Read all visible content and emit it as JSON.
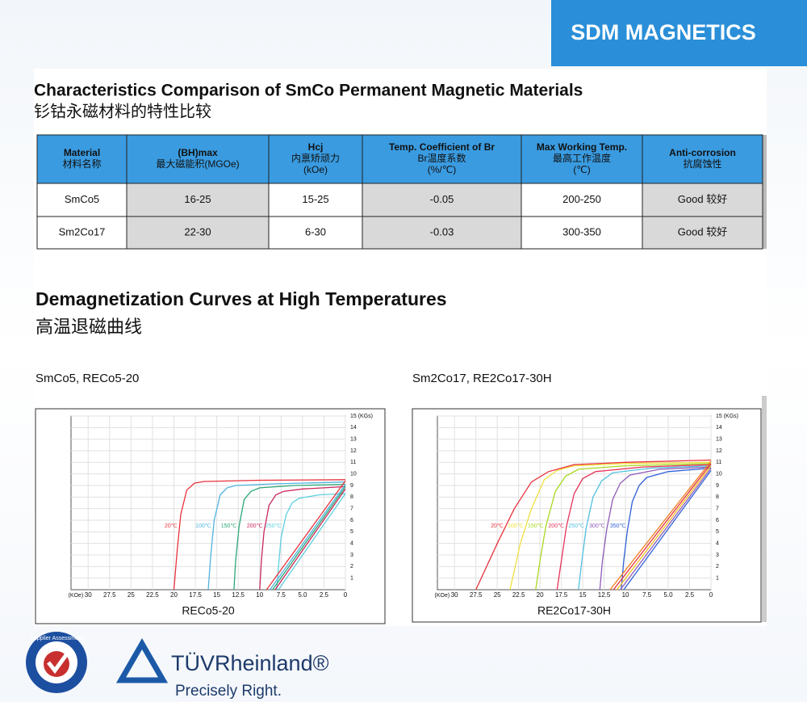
{
  "header": {
    "brand": "SDM MAGNETICS"
  },
  "table": {
    "title": "Characteristics Comparison of SmCo Permanent Magnetic Materials",
    "subtitle": "钐钴永磁材料的特性比较",
    "columns": [
      [
        "Material",
        "材料名称"
      ],
      [
        "(BH)max",
        "最大磁能积(MGOe)"
      ],
      [
        "Hcj",
        "内禀矫顽力",
        "(kOe)"
      ],
      [
        "Temp. Coefficient of Br",
        "Br温度系数",
        "(%/℃)"
      ],
      [
        "Max Working Temp.",
        "最高工作温度",
        "(℃)"
      ],
      [
        "Anti-corrosion",
        "抗腐蚀性"
      ]
    ],
    "rows": [
      [
        "SmCo5",
        "16-25",
        "15-25",
        "-0.05",
        "200-250",
        "Good 较好"
      ],
      [
        "Sm2Co17",
        "22-30",
        "6-30",
        "-0.03",
        "300-350",
        "Good 较好"
      ]
    ]
  },
  "section": {
    "title": "Demagnetization Curves at High Temperatures",
    "subtitle": "高温退磁曲线"
  },
  "chart_data": [
    {
      "type": "line",
      "title": "SmCo5, RECo5-20",
      "caption": "RECo5-20",
      "x_label": "(KOe)",
      "xlim": [
        32,
        0
      ],
      "ylim": [
        0,
        15
      ],
      "xticks": [
        30,
        27.5,
        25,
        22.5,
        20,
        17.5,
        15,
        12.5,
        10,
        7.5,
        {
          "value": 5,
          "label": "5.0"
        },
        2.5,
        0
      ],
      "yticks": [
        1,
        2,
        3,
        4,
        5,
        6,
        7,
        8,
        9,
        10,
        11,
        12,
        13,
        14,
        {
          "value": 15,
          "label": "15 (KGs)"
        }
      ],
      "grid": true,
      "series": [
        {
          "name": "20℃",
          "color": "#e8323c",
          "x": [
            0,
            10,
            16.5,
            17.6,
            18.5,
            19.2,
            19.6,
            20
          ],
          "values": [
            9.5,
            9.45,
            9.35,
            9.2,
            8.6,
            6.5,
            3.5,
            0
          ]
        },
        {
          "name": "100℃",
          "color": "#4fb3e0",
          "x": [
            0,
            8,
            12.8,
            13.8,
            14.6,
            15.3,
            15.7,
            16
          ],
          "values": [
            9.3,
            9.15,
            9,
            8.8,
            8.2,
            6,
            3,
            0
          ]
        },
        {
          "name": "150℃",
          "color": "#2aa876",
          "x": [
            0,
            6,
            10,
            11,
            11.8,
            12.4,
            12.8,
            13
          ],
          "values": [
            9.1,
            9,
            8.8,
            8.5,
            7.8,
            5.5,
            2.5,
            0
          ]
        },
        {
          "name": "200℃",
          "color": "#c8285a",
          "x": [
            0,
            5,
            7.2,
            8.1,
            8.9,
            9.5,
            9.8,
            10
          ],
          "values": [
            8.9,
            8.7,
            8.5,
            8.2,
            7.3,
            5,
            2.5,
            0
          ]
        },
        {
          "name": "250℃",
          "color": "#5ed0e0",
          "x": [
            0,
            3,
            5.4,
            6.2,
            6.9,
            7.5,
            7.8,
            8
          ],
          "values": [
            8.3,
            8.2,
            7.9,
            7.5,
            6.5,
            4.5,
            2,
            0
          ]
        },
        {
          "color": "#e8323c",
          "x": [
            0,
            9.2
          ],
          "values": [
            9.4,
            0
          ]
        },
        {
          "color": "#4fb3e0",
          "x": [
            0,
            8.8
          ],
          "values": [
            9.1,
            0
          ]
        },
        {
          "color": "#2aa876",
          "x": [
            0,
            8.5
          ],
          "values": [
            8.9,
            0
          ]
        },
        {
          "color": "#c8285a",
          "x": [
            0,
            8.2
          ],
          "values": [
            8.7,
            0
          ]
        },
        {
          "color": "#5ed0e0",
          "x": [
            0,
            7.8
          ],
          "values": [
            8.3,
            0
          ]
        }
      ]
    },
    {
      "type": "line",
      "title": "Sm2Co17, RE2Co17-30H",
      "caption": "RE2Co17-30H",
      "x_label": "(KOe)",
      "xlim": [
        32,
        0
      ],
      "ylim": [
        0,
        15
      ],
      "xticks": [
        30,
        27.5,
        25,
        22.5,
        20,
        17.5,
        15,
        12.5,
        10,
        7.5,
        {
          "value": 5,
          "label": "5.0"
        },
        2.5,
        0
      ],
      "yticks": [
        1,
        2,
        3,
        4,
        5,
        6,
        7,
        8,
        9,
        10,
        11,
        12,
        13,
        14,
        {
          "value": 15,
          "label": "15 (KGs)"
        }
      ],
      "grid": true,
      "series": [
        {
          "name": "20℃",
          "color": "#e8323c",
          "x": [
            0,
            10,
            16,
            19,
            21,
            23,
            25,
            27.5
          ],
          "values": [
            11.2,
            11,
            10.8,
            10.2,
            9.3,
            7,
            4,
            0
          ]
        },
        {
          "name": "100℃",
          "color": "#f0e040",
          "x": [
            0,
            10,
            16,
            18,
            19.5,
            21,
            22.3,
            23.5
          ],
          "values": [
            11,
            10.9,
            10.7,
            10.3,
            9.5,
            7,
            4,
            0
          ]
        },
        {
          "name": "150℃",
          "color": "#a8d820",
          "x": [
            0,
            10,
            15.5,
            17,
            18.2,
            19.3,
            20,
            20.5
          ],
          "values": [
            10.9,
            10.7,
            10.4,
            9.8,
            8.5,
            5.5,
            2.5,
            0
          ]
        },
        {
          "name": "200℃",
          "color": "#e8325a",
          "x": [
            0,
            8,
            13.5,
            15,
            16,
            16.9,
            17.5,
            18
          ],
          "values": [
            10.8,
            10.6,
            10.2,
            9.6,
            8.3,
            5.5,
            2.5,
            0
          ]
        },
        {
          "name": "250℃",
          "color": "#4fc0e0",
          "x": [
            0,
            7,
            11.5,
            12.8,
            13.8,
            14.6,
            15.1,
            15.5
          ],
          "values": [
            10.7,
            10.5,
            10.1,
            9.4,
            8,
            5.3,
            2.5,
            0
          ]
        },
        {
          "name": "300℃",
          "color": "#8e5ab8",
          "x": [
            0,
            6,
            9.5,
            10.6,
            11.5,
            12.2,
            12.7,
            13
          ],
          "values": [
            10.6,
            10.4,
            9.9,
            9.2,
            7.8,
            5.2,
            2.5,
            0
          ]
        },
        {
          "name": "350℃",
          "color": "#3060d8",
          "x": [
            0,
            5,
            7.5,
            8.4,
            9.2,
            9.8,
            10.2,
            10.5
          ],
          "values": [
            10.5,
            10.2,
            9.7,
            9,
            7.6,
            5,
            2.5,
            0
          ]
        },
        {
          "color": "#f08020",
          "x": [
            0,
            11.8
          ],
          "values": [
            11.1,
            0
          ]
        },
        {
          "color": "#e8323c",
          "x": [
            0,
            11.4
          ],
          "values": [
            10.9,
            0
          ]
        },
        {
          "color": "#f0c020",
          "x": [
            0,
            11
          ],
          "values": [
            10.7,
            0
          ]
        },
        {
          "color": "#8e5ab8",
          "x": [
            0,
            10.6
          ],
          "values": [
            10.5,
            0
          ]
        },
        {
          "color": "#3060d8",
          "x": [
            0,
            10.2
          ],
          "values": [
            10.3,
            0
          ]
        }
      ]
    }
  ],
  "footer": {
    "badge": "Supplier Assessment",
    "brand": "TÜVRheinland®",
    "slogan": "Precisely Right."
  }
}
